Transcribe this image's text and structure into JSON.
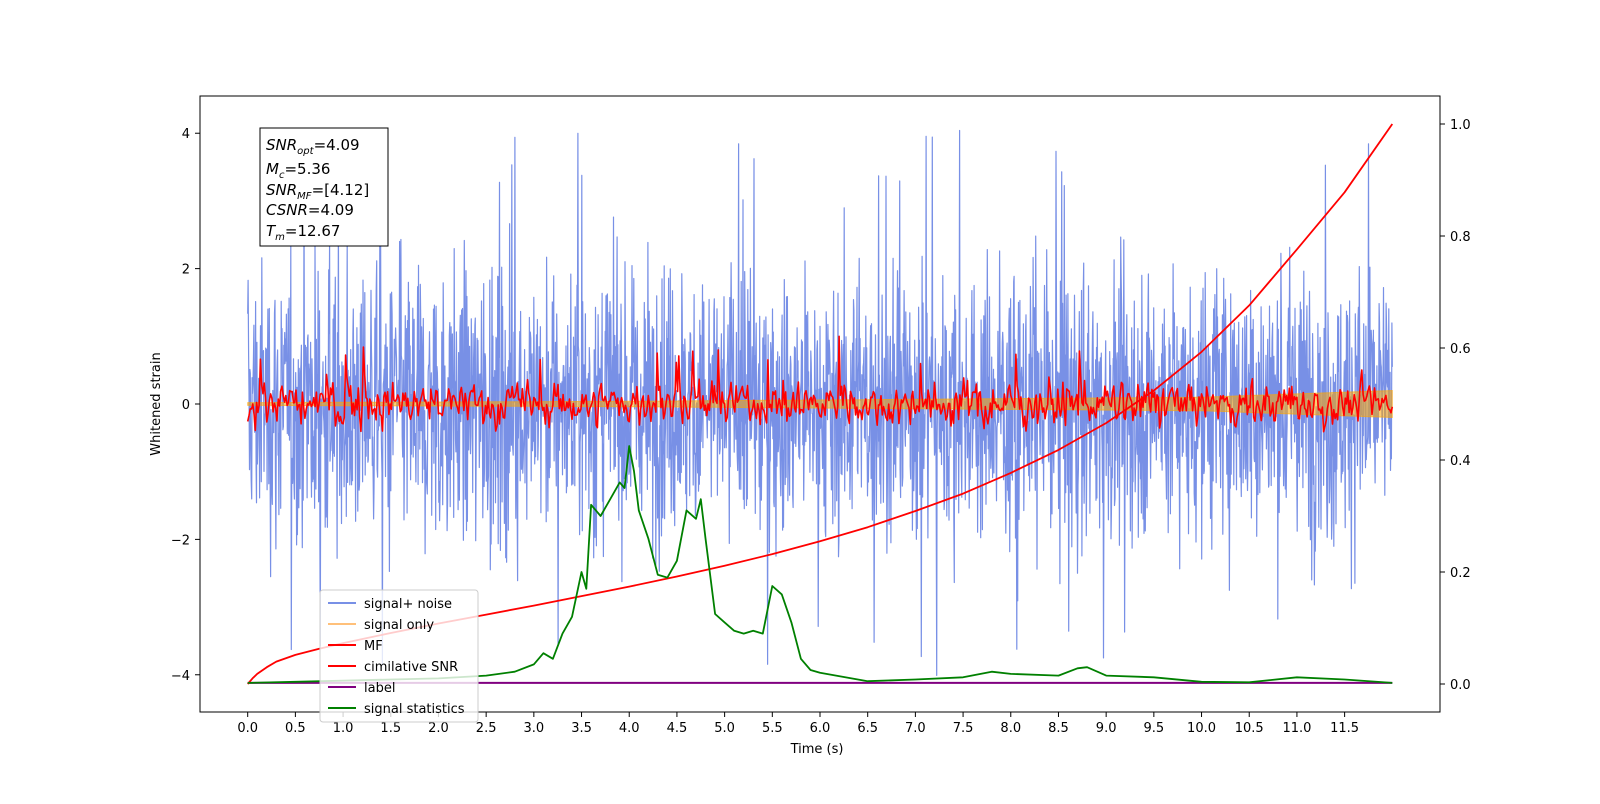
{
  "chart_data": {
    "type": "line",
    "xlabel": "Time (s)",
    "ylabel": "Whitened strain",
    "xlim": [
      -0.5,
      12.5
    ],
    "ylim": [
      -4.55,
      4.55
    ],
    "ylim_right": [
      -0.05,
      1.05
    ],
    "grid": false,
    "legend_position": "lower-left",
    "x_ticks": [
      "0.0",
      "0.5",
      "1.0",
      "1.5",
      "2.0",
      "2.5",
      "3.0",
      "3.5",
      "4.0",
      "4.5",
      "5.0",
      "5.5",
      "6.0",
      "6.5",
      "7.0",
      "7.5",
      "8.0",
      "8.5",
      "9.0",
      "9.5",
      "10.0",
      "10.5",
      "11.0",
      "11.5"
    ],
    "y_ticks_left": [
      "4",
      "2",
      "0",
      "−2",
      "−4"
    ],
    "y_ticks_right": [
      "1.0",
      "0.8",
      "0.6",
      "0.4",
      "0.2",
      "0.0"
    ],
    "info_box": [
      {
        "base": "SNR",
        "sub": "opt",
        "value": "=4.09"
      },
      {
        "base": "M",
        "sub": "c",
        "value": "=5.36"
      },
      {
        "base": "SNR",
        "sub": "MF",
        "value": "=[4.12]"
      },
      {
        "base": "CSNR",
        "sub": "",
        "value": "=4.09"
      },
      {
        "base": "T",
        "sub": "m",
        "value": "=12.67"
      }
    ],
    "series": [
      {
        "name": "signal+ noise",
        "color": "#4169e1",
        "axis": "left",
        "description_values": "noise band approx -3.5 to 3.5, spikes to ±4.1"
      },
      {
        "name": "signal only",
        "color": "#ffa500",
        "axis": "left",
        "envelope": [
          [
            0,
            0.02
          ],
          [
            4,
            0.04
          ],
          [
            8,
            0.08
          ],
          [
            10,
            0.1
          ],
          [
            12,
            0.2
          ]
        ]
      },
      {
        "name": "MF",
        "color": "#ff0000",
        "axis": "left",
        "range": [
          -0.4,
          1.0
        ]
      },
      {
        "name": "cimilative SNR",
        "color": "#ff0000",
        "axis": "right",
        "x": [
          0,
          0.05,
          0.1,
          0.2,
          0.3,
          0.5,
          0.75,
          1.0,
          1.5,
          2.0,
          2.5,
          3.0,
          3.5,
          4.0,
          4.5,
          5.0,
          5.5,
          6.0,
          6.5,
          7.0,
          7.5,
          8.0,
          8.5,
          9.0,
          9.5,
          10.0,
          10.5,
          11.0,
          11.5,
          12.0
        ],
        "y": [
          0.0,
          0.01,
          0.018,
          0.03,
          0.04,
          0.052,
          0.063,
          0.073,
          0.091,
          0.108,
          0.124,
          0.14,
          0.157,
          0.174,
          0.192,
          0.211,
          0.232,
          0.255,
          0.28,
          0.309,
          0.34,
          0.377,
          0.418,
          0.466,
          0.524,
          0.593,
          0.676,
          0.776,
          0.878,
          1.0
        ]
      },
      {
        "name": "label",
        "color": "#800080",
        "axis": "right",
        "x": [
          0,
          12
        ],
        "y": [
          0.002,
          0.002
        ]
      },
      {
        "name": "signal statistics",
        "color": "#008000",
        "axis": "right",
        "x": [
          0,
          0.5,
          1.0,
          1.5,
          2.0,
          2.5,
          2.8,
          3.0,
          3.1,
          3.2,
          3.3,
          3.4,
          3.5,
          3.55,
          3.6,
          3.7,
          3.8,
          3.9,
          3.95,
          4.0,
          4.05,
          4.1,
          4.2,
          4.3,
          4.4,
          4.5,
          4.6,
          4.7,
          4.75,
          4.8,
          4.9,
          5.0,
          5.1,
          5.2,
          5.3,
          5.4,
          5.5,
          5.6,
          5.7,
          5.8,
          5.9,
          6.0,
          6.5,
          7.0,
          7.5,
          7.8,
          8.0,
          8.5,
          8.7,
          8.8,
          9.0,
          9.5,
          10.0,
          10.5,
          11.0,
          11.5,
          12.0
        ],
        "y": [
          0.002,
          0.004,
          0.006,
          0.008,
          0.01,
          0.015,
          0.022,
          0.035,
          0.055,
          0.045,
          0.09,
          0.12,
          0.2,
          0.17,
          0.32,
          0.3,
          0.33,
          0.36,
          0.35,
          0.425,
          0.38,
          0.31,
          0.26,
          0.195,
          0.19,
          0.22,
          0.31,
          0.295,
          0.33,
          0.26,
          0.125,
          0.11,
          0.095,
          0.09,
          0.095,
          0.09,
          0.175,
          0.16,
          0.11,
          0.045,
          0.025,
          0.02,
          0.005,
          0.008,
          0.012,
          0.022,
          0.018,
          0.015,
          0.028,
          0.03,
          0.015,
          0.012,
          0.004,
          0.003,
          0.012,
          0.008,
          0.002
        ]
      }
    ]
  },
  "legend": [
    {
      "label": "signal+ noise",
      "color": "#7890e6"
    },
    {
      "label": "signal only",
      "color": "#ffc07a"
    },
    {
      "label": "MF",
      "color": "#ff0000"
    },
    {
      "label": "cimilative SNR",
      "color": "#ff0000"
    },
    {
      "label": "label",
      "color": "#800080"
    },
    {
      "label": "signal statistics",
      "color": "#008000"
    }
  ]
}
